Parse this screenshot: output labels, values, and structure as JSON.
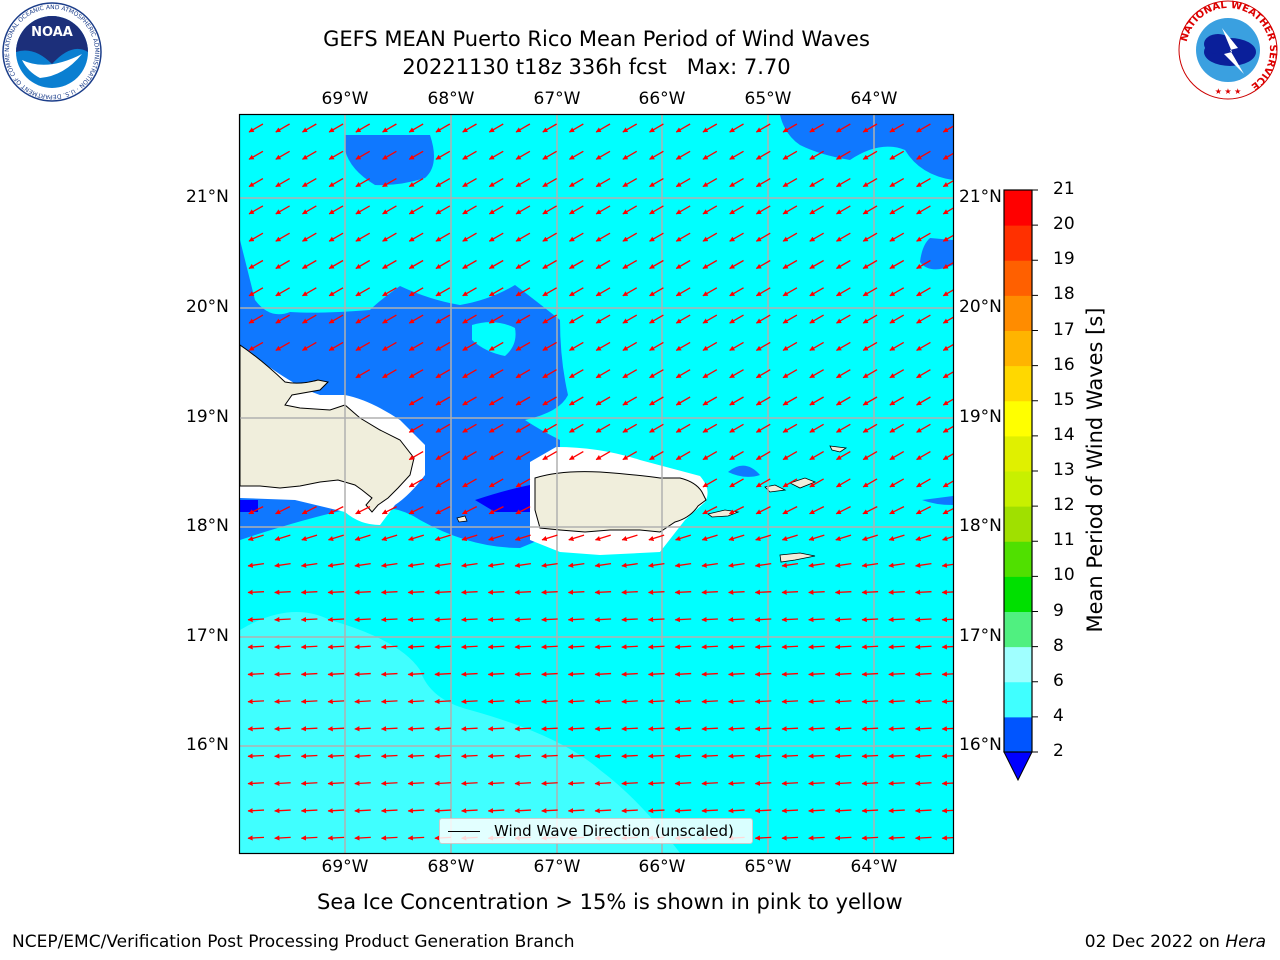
{
  "header": {
    "title_line1": "GEFS MEAN Puerto Rico Mean Period of Wind Waves",
    "title_line2": "20221130 t18z 336h fcst   Max: 7.70"
  },
  "logos": {
    "noaa_text": "NOAA",
    "noaa_ring_text": "NATIONAL OCEANIC AND ATMOSPHERIC ADMINISTRATION · U.S. DEPARTMENT OF COMMERCE",
    "nws_ring_text": "NATIONAL WEATHER SERVICE"
  },
  "map": {
    "lon_ticks": [
      "69°W",
      "68°W",
      "67°W",
      "66°W",
      "65°W",
      "64°W"
    ],
    "lat_ticks": [
      "21°N",
      "20°N",
      "19°N",
      "18°N",
      "17°N",
      "16°N"
    ],
    "legend_label": "Wind Wave Direction (unscaled)",
    "arrow_color": "#ff0000",
    "land_color": "#f0eedc",
    "grid_color": "#b0b0b0"
  },
  "colorbar": {
    "title": "Mean Period of Wind Waves [s]",
    "labels": [
      "2",
      "4",
      "6",
      "8",
      "9",
      "10",
      "11",
      "12",
      "13",
      "14",
      "15",
      "16",
      "17",
      "18",
      "19",
      "20",
      "21"
    ],
    "colors": [
      "#0055ff",
      "#00ffff",
      "#40ffff",
      "#a0ffff",
      "#50f080",
      "#00e000",
      "#50e000",
      "#a0e000",
      "#c8f000",
      "#e0f000",
      "#ffff00",
      "#ffd800",
      "#ffb400",
      "#ff8c00",
      "#ff6000",
      "#ff3000",
      "#ff0000"
    ],
    "extend_color": "#0000ff"
  },
  "sea_ice_note": "Sea Ice Concentration > 15% is shown in pink to yellow",
  "footer": {
    "left": "NCEP/EMC/Verification Post Processing Product Generation Branch",
    "date": "02 Dec 2022 on ",
    "host": "Hera"
  }
}
